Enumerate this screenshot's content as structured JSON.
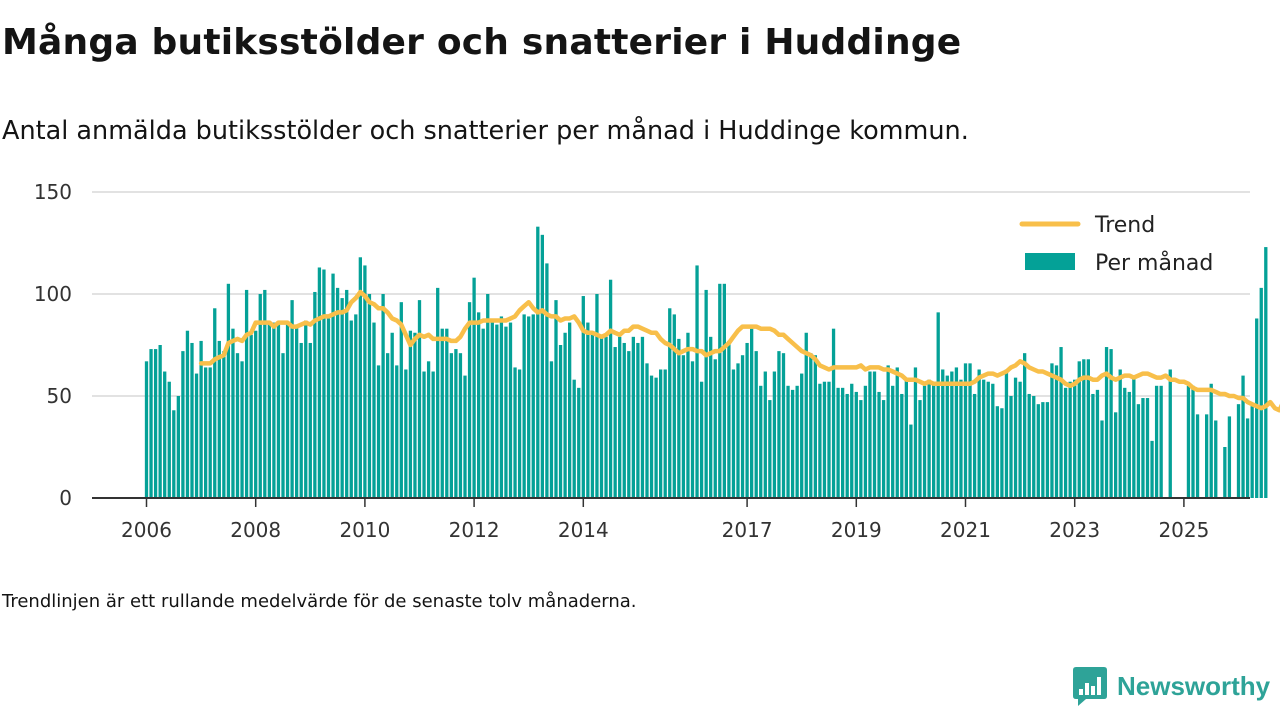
{
  "title": "Många butiksstölder och snatterier i Huddinge",
  "subtitle": "Antal anmälda butiksstölder och snatterier per månad i Huddinge kommun.",
  "footnote": "Trendlinjen är ett rullande medelvärde för de senaste tolv månaderna.",
  "brand": {
    "name": "Newsworthy",
    "icon": "newsworthy-logo-icon"
  },
  "colors": {
    "bar": "#04a197",
    "trend": "#f8bf4a",
    "grid": "#d8d8d8",
    "axis": "#333333"
  },
  "chart_data": {
    "type": "bar",
    "series_types": {
      "bars": "bar",
      "trend": "line"
    },
    "y_ticks": [
      0,
      50,
      100,
      150
    ],
    "ylim": [
      0,
      150
    ],
    "x_ticks": [
      "2006",
      "2008",
      "2010",
      "2012",
      "2014",
      "2017",
      "2019",
      "2021",
      "2023",
      "2025"
    ],
    "x_start": "2006-01",
    "legend": {
      "position": "top-right",
      "entries": [
        "Trend",
        "Per månad"
      ]
    },
    "grid": true,
    "series": [
      {
        "name": "Per månad",
        "values": [
          67,
          73,
          73,
          75,
          62,
          57,
          43,
          50,
          72,
          82,
          76,
          61,
          77,
          64,
          64,
          93,
          77,
          72,
          105,
          83,
          71,
          67,
          102,
          80,
          82,
          100,
          102,
          86,
          86,
          86,
          71,
          85,
          97,
          84,
          76,
          87,
          76,
          101,
          113,
          112,
          88,
          110,
          103,
          98,
          102,
          87,
          90,
          118,
          114,
          100,
          86,
          65,
          100,
          71,
          81,
          65,
          96,
          63,
          82,
          81,
          97,
          62,
          67,
          62,
          103,
          83,
          83,
          71,
          73,
          71,
          60,
          96,
          108,
          91,
          83,
          100,
          87,
          85,
          89,
          84,
          86,
          64,
          63,
          90,
          89,
          90,
          133,
          129,
          115,
          67,
          97,
          75,
          81,
          86,
          58,
          54,
          99,
          86,
          80,
          100,
          80,
          79,
          107,
          74,
          79,
          76,
          72,
          79,
          76,
          79,
          66,
          60,
          59,
          63,
          63,
          93,
          90,
          78,
          70,
          81,
          67,
          114,
          57,
          102,
          79,
          68,
          105,
          105,
          77,
          63,
          66,
          70,
          76,
          83,
          72,
          55,
          62,
          48,
          62,
          72,
          71,
          55,
          53,
          55,
          61,
          81,
          71,
          70,
          56,
          57,
          57,
          83,
          54,
          54,
          51,
          56,
          52,
          48,
          55,
          62,
          62,
          52,
          48,
          65,
          55,
          64,
          51,
          59,
          36,
          64,
          48,
          55,
          58,
          56,
          91,
          63,
          60,
          62,
          64,
          58,
          66,
          66,
          51,
          63,
          58,
          57,
          56,
          45,
          44,
          63,
          50,
          59,
          57,
          71,
          51,
          50,
          46,
          47,
          47,
          66,
          65,
          74,
          54,
          57,
          58,
          67,
          68,
          68,
          51,
          53,
          38,
          74,
          73,
          42,
          63,
          54,
          52,
          60,
          46,
          49,
          49,
          28,
          55,
          55,
          0,
          63,
          0,
          0,
          0,
          55,
          55,
          41,
          0,
          41,
          56,
          38,
          0,
          25,
          40,
          0,
          46,
          60,
          39,
          45,
          88,
          103,
          123
        ]
      },
      {
        "name": "Trend",
        "start_index": 12,
        "values": [
          66,
          66,
          66,
          68,
          69,
          70,
          76,
          77,
          78,
          77,
          80,
          81,
          86,
          86,
          86,
          86,
          84,
          86,
          86,
          86,
          84,
          84,
          85,
          86,
          85,
          87,
          88,
          89,
          89,
          90,
          91,
          91,
          92,
          96,
          98,
          101,
          99,
          96,
          95,
          93,
          93,
          91,
          88,
          87,
          85,
          80,
          75,
          78,
          80,
          79,
          80,
          78,
          78,
          78,
          78,
          77,
          77,
          79,
          83,
          86,
          86,
          86,
          87,
          87,
          87,
          87,
          87,
          87,
          88,
          89,
          92,
          94,
          96,
          93,
          91,
          92,
          90,
          89,
          89,
          87,
          88,
          88,
          89,
          86,
          82,
          81,
          81,
          80,
          79,
          80,
          82,
          81,
          80,
          82,
          82,
          84,
          84,
          83,
          82,
          81,
          81,
          78,
          76,
          75,
          73,
          71,
          72,
          73,
          73,
          72,
          72,
          70,
          71,
          72,
          72,
          74,
          76,
          79,
          82,
          84,
          84,
          84,
          84,
          83,
          83,
          83,
          82,
          80,
          80,
          78,
          76,
          74,
          72,
          71,
          70,
          68,
          65,
          64,
          63,
          64,
          64,
          64,
          64,
          64,
          64,
          65,
          63,
          64,
          64,
          64,
          63,
          63,
          62,
          61,
          60,
          58,
          58,
          58,
          57,
          56,
          57,
          56,
          56,
          56,
          56,
          56,
          56,
          56,
          56,
          56,
          57,
          59,
          60,
          61,
          61,
          60,
          61,
          62,
          64,
          65,
          67,
          66,
          64,
          63,
          62,
          62,
          61,
          60,
          59,
          58,
          56,
          55,
          56,
          58,
          59,
          59,
          58,
          58,
          60,
          61,
          59,
          58,
          59,
          60,
          60,
          59,
          60,
          61,
          61,
          60,
          59,
          59,
          60,
          58,
          58,
          57,
          57,
          56,
          54,
          53,
          53,
          53,
          53,
          52,
          51,
          51,
          50,
          50,
          49,
          49,
          47,
          46,
          45,
          44,
          45,
          47,
          44,
          43,
          48,
          54
        ]
      }
    ]
  }
}
